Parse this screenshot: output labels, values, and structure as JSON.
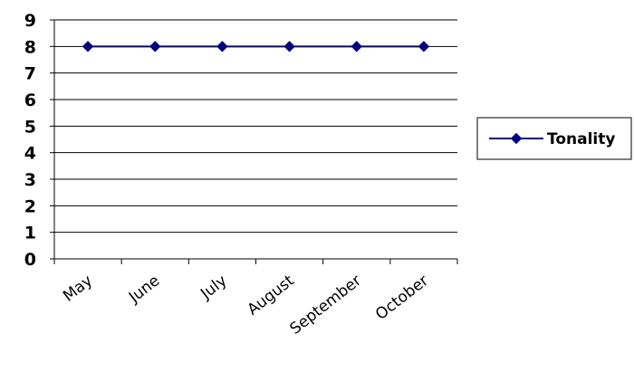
{
  "chart_data": {
    "type": "line",
    "categories": [
      "May",
      "June",
      "July",
      "August",
      "September",
      "October"
    ],
    "series": [
      {
        "name": "Tonality",
        "values": [
          8,
          8,
          8,
          8,
          8,
          8
        ]
      }
    ],
    "yticks": [
      "0",
      "1",
      "2",
      "3",
      "4",
      "5",
      "6",
      "7",
      "8",
      "9"
    ],
    "ylim": [
      0,
      9
    ],
    "grid": true,
    "legend": "right",
    "colors": {
      "series": "#000080",
      "grid": "#000000",
      "axis": "#000000"
    }
  }
}
